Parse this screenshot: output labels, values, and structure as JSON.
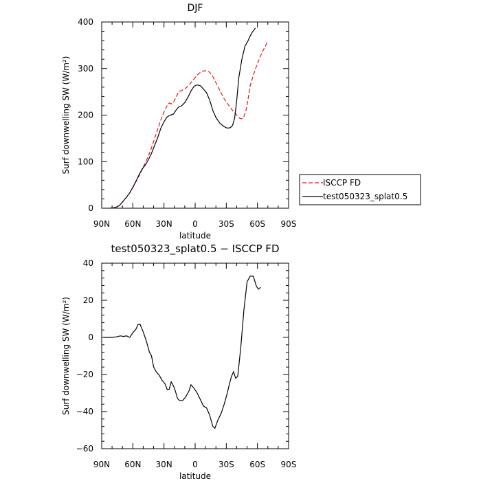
{
  "chart_data": [
    {
      "type": "line",
      "title": "DJF",
      "xlabel": "latitude",
      "ylabel": "Surf downwelling SW (W/m²)",
      "xlim": [
        -90,
        90
      ],
      "ylim": [
        0,
        400
      ],
      "x_ticks": [
        -90,
        -60,
        -30,
        0,
        30,
        60,
        90
      ],
      "x_tick_labels": [
        "90N",
        "60N",
        "30N",
        "0",
        "30S",
        "60S",
        "90S"
      ],
      "y_ticks": [
        0,
        100,
        200,
        300,
        400
      ],
      "y_tick_labels": [
        "0",
        "100",
        "200",
        "300",
        "400"
      ],
      "legend_position": "right",
      "series": [
        {
          "name": "ISCCP FD",
          "color": "#e8140f",
          "dash": "dashed",
          "points": [
            [
              -82,
              0
            ],
            [
              -78,
              1
            ],
            [
              -75,
              3
            ],
            [
              -72,
              8
            ],
            [
              -69,
              16
            ],
            [
              -66,
              24
            ],
            [
              -63,
              33
            ],
            [
              -60,
              44
            ],
            [
              -57,
              57
            ],
            [
              -54,
              70
            ],
            [
              -51,
              83
            ],
            [
              -48,
              98
            ],
            [
              -45,
              112
            ],
            [
              -42,
              130
            ],
            [
              -39,
              150
            ],
            [
              -36,
              170
            ],
            [
              -33,
              190
            ],
            [
              -30,
              207
            ],
            [
              -27,
              220
            ],
            [
              -25,
              226
            ],
            [
              -23,
              224
            ],
            [
              -21,
              227
            ],
            [
              -18,
              240
            ],
            [
              -16,
              250
            ],
            [
              -13,
              253
            ],
            [
              -10,
              256
            ],
            [
              -7,
              262
            ],
            [
              -4,
              270
            ],
            [
              -1,
              278
            ],
            [
              2,
              286
            ],
            [
              5,
              292
            ],
            [
              8,
              295
            ],
            [
              11,
              295
            ],
            [
              14,
              292
            ],
            [
              17,
              283
            ],
            [
              20,
              270
            ],
            [
              24,
              252
            ],
            [
              28,
              235
            ],
            [
              32,
              222
            ],
            [
              36,
              210
            ],
            [
              40,
              200
            ],
            [
              43,
              193
            ],
            [
              45,
              192
            ],
            [
              47,
              197
            ],
            [
              49,
              210
            ],
            [
              51,
              235
            ],
            [
              53,
              263
            ],
            [
              56,
              285
            ],
            [
              59,
              305
            ],
            [
              62,
              322
            ],
            [
              65,
              337
            ],
            [
              68,
              350
            ],
            [
              70,
              360
            ]
          ]
        },
        {
          "name": "test050323_splat0.5",
          "color": "#000000",
          "dash": "solid",
          "points": [
            [
              -82,
              0
            ],
            [
              -78,
              1
            ],
            [
              -75,
              3
            ],
            [
              -72,
              8
            ],
            [
              -69,
              16
            ],
            [
              -66,
              24
            ],
            [
              -63,
              33
            ],
            [
              -60,
              45
            ],
            [
              -57,
              58
            ],
            [
              -54,
              72
            ],
            [
              -51,
              84
            ],
            [
              -48,
              93
            ],
            [
              -45,
              104
            ],
            [
              -42,
              118
            ],
            [
              -39,
              135
            ],
            [
              -36,
              152
            ],
            [
              -33,
              172
            ],
            [
              -30,
              186
            ],
            [
              -27,
              196
            ],
            [
              -24,
              200
            ],
            [
              -21,
              202
            ],
            [
              -18,
              212
            ],
            [
              -16,
              217
            ],
            [
              -13,
              220
            ],
            [
              -10,
              227
            ],
            [
              -7,
              238
            ],
            [
              -4,
              252
            ],
            [
              -1,
              262
            ],
            [
              2,
              265
            ],
            [
              5,
              263
            ],
            [
              8,
              256
            ],
            [
              11,
              248
            ],
            [
              14,
              232
            ],
            [
              17,
              210
            ],
            [
              20,
              195
            ],
            [
              24,
              182
            ],
            [
              28,
              175
            ],
            [
              31,
              172
            ],
            [
              34,
              173
            ],
            [
              36,
              178
            ],
            [
              38,
              193
            ],
            [
              40,
              230
            ],
            [
              42,
              280
            ],
            [
              45,
              320
            ],
            [
              48,
              348
            ],
            [
              51,
              360
            ],
            [
              53,
              370
            ],
            [
              55,
              378
            ],
            [
              58,
              387
            ]
          ]
        }
      ]
    },
    {
      "type": "line",
      "title": "test050323_splat0.5 − ISCCP FD",
      "xlabel": "latitude",
      "ylabel": "Surf downwelling SW (W/m²)",
      "xlim": [
        -90,
        90
      ],
      "ylim": [
        -60,
        40
      ],
      "x_ticks": [
        -90,
        -60,
        -30,
        0,
        30,
        60,
        90
      ],
      "x_tick_labels": [
        "90N",
        "60N",
        "30N",
        "0",
        "30S",
        "60S",
        "90S"
      ],
      "y_ticks": [
        -60,
        -40,
        -20,
        0,
        20,
        40
      ],
      "y_tick_labels": [
        "−60",
        "−40",
        "−20",
        "0",
        "20",
        "40"
      ],
      "series": [
        {
          "name": "",
          "color": "#000000",
          "dash": "solid",
          "points": [
            [
              -88,
              0
            ],
            [
              -80,
              0
            ],
            [
              -76,
              0.3
            ],
            [
              -72,
              0.8
            ],
            [
              -69,
              0.5
            ],
            [
              -66,
              0.8
            ],
            [
              -63,
              0
            ],
            [
              -60,
              2.5
            ],
            [
              -57,
              4.5
            ],
            [
              -55,
              7
            ],
            [
              -53,
              7
            ],
            [
              -50,
              3
            ],
            [
              -47,
              -2
            ],
            [
              -44,
              -8
            ],
            [
              -42,
              -10
            ],
            [
              -40,
              -16
            ],
            [
              -37,
              -19
            ],
            [
              -35,
              -20
            ],
            [
              -32,
              -23
            ],
            [
              -29,
              -25
            ],
            [
              -27,
              -28
            ],
            [
              -25,
              -28
            ],
            [
              -23,
              -24
            ],
            [
              -21,
              -26
            ],
            [
              -19,
              -29
            ],
            [
              -17,
              -33
            ],
            [
              -15,
              -34
            ],
            [
              -12,
              -34
            ],
            [
              -9,
              -32
            ],
            [
              -6,
              -29
            ],
            [
              -4,
              -25.5
            ],
            [
              -1,
              -27.5
            ],
            [
              2,
              -30
            ],
            [
              5,
              -33.5
            ],
            [
              8,
              -37
            ],
            [
              11,
              -38
            ],
            [
              14,
              -42
            ],
            [
              17,
              -48
            ],
            [
              19,
              -49
            ],
            [
              22,
              -44.5
            ],
            [
              25,
              -41
            ],
            [
              28,
              -36
            ],
            [
              31,
              -30
            ],
            [
              33,
              -25
            ],
            [
              35,
              -21
            ],
            [
              37,
              -18.5
            ],
            [
              39,
              -22
            ],
            [
              41,
              -21
            ],
            [
              44,
              -5
            ],
            [
              47,
              15
            ],
            [
              50,
              30
            ],
            [
              53,
              33
            ],
            [
              56,
              33
            ],
            [
              59,
              27.5
            ],
            [
              61,
              26
            ],
            [
              63,
              27
            ]
          ]
        }
      ]
    }
  ]
}
